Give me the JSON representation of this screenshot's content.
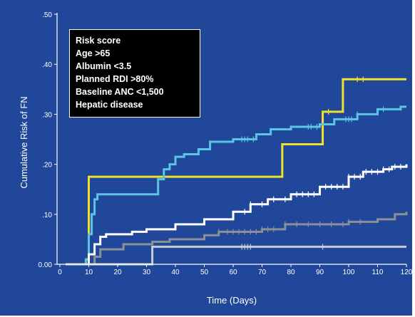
{
  "chart_data": {
    "type": "line",
    "title": "",
    "xlabel": "Time (Days)",
    "ylabel": "Cumulative Risk of FN",
    "xlim": [
      0,
      120
    ],
    "ylim": [
      0,
      0.5
    ],
    "x_ticks": [
      "0",
      "10",
      "20",
      "30",
      "40",
      "50",
      "60",
      "70",
      "80",
      "90",
      "100",
      "110",
      "120"
    ],
    "y_ticks": [
      "0.00",
      ".10",
      ".20",
      ".30",
      ".40",
      ".50"
    ],
    "legend": {
      "header": "Risk score",
      "entries": [
        "Age >65",
        "Albumin <3.5",
        "Planned RDI >80%",
        "Baseline ANC <1,500",
        "Hepatic disease"
      ]
    },
    "series": [
      {
        "color": "#f2e12b",
        "points": [
          [
            2,
            0
          ],
          [
            8,
            0
          ],
          [
            9,
            0.01
          ],
          [
            10,
            0.02
          ],
          [
            10,
            0.175
          ],
          [
            77,
            0.175
          ],
          [
            77,
            0.24
          ],
          [
            91,
            0.24
          ],
          [
            91,
            0.305
          ],
          [
            98,
            0.305
          ],
          [
            98,
            0.37
          ],
          [
            120,
            0.37
          ]
        ],
        "censor_x": [
          93,
          103,
          105
        ]
      },
      {
        "color": "#5cc5e3",
        "points": [
          [
            2,
            0
          ],
          [
            8,
            0
          ],
          [
            9,
            0.01
          ],
          [
            10,
            0.06
          ],
          [
            11,
            0.1
          ],
          [
            12,
            0.13
          ],
          [
            13,
            0.14
          ],
          [
            33,
            0.14
          ],
          [
            34,
            0.17
          ],
          [
            36,
            0.19
          ],
          [
            38,
            0.2
          ],
          [
            40,
            0.215
          ],
          [
            43,
            0.22
          ],
          [
            48,
            0.23
          ],
          [
            52,
            0.245
          ],
          [
            60,
            0.25
          ],
          [
            68,
            0.26
          ],
          [
            73,
            0.27
          ],
          [
            80,
            0.275
          ],
          [
            90,
            0.28
          ],
          [
            95,
            0.29
          ],
          [
            103,
            0.3
          ],
          [
            110,
            0.31
          ],
          [
            118,
            0.315
          ],
          [
            120,
            0.315
          ]
        ],
        "censor_x": [
          63,
          64,
          65,
          67,
          86,
          87,
          89,
          99,
          100,
          101,
          103,
          112
        ]
      },
      {
        "color": "#ffffff",
        "points": [
          [
            2,
            0
          ],
          [
            8,
            0
          ],
          [
            10,
            0.02
          ],
          [
            12,
            0.04
          ],
          [
            14,
            0.055
          ],
          [
            16,
            0.06
          ],
          [
            24,
            0.06
          ],
          [
            25,
            0.065
          ],
          [
            30,
            0.07
          ],
          [
            40,
            0.08
          ],
          [
            50,
            0.09
          ],
          [
            60,
            0.105
          ],
          [
            66,
            0.12
          ],
          [
            72,
            0.13
          ],
          [
            80,
            0.14
          ],
          [
            90,
            0.155
          ],
          [
            100,
            0.175
          ],
          [
            105,
            0.185
          ],
          [
            112,
            0.19
          ],
          [
            115,
            0.195
          ],
          [
            120,
            0.2
          ]
        ],
        "censor_x": [
          64,
          66,
          70,
          74,
          78,
          82,
          84,
          86,
          88,
          92,
          94,
          96,
          98,
          100,
          102,
          104,
          106,
          108,
          110,
          112,
          114,
          116,
          118
        ]
      },
      {
        "color": "#8b8f97",
        "points": [
          [
            2,
            0
          ],
          [
            10,
            0
          ],
          [
            12,
            0.015
          ],
          [
            14,
            0.03
          ],
          [
            22,
            0.04
          ],
          [
            32,
            0.045
          ],
          [
            38,
            0.05
          ],
          [
            50,
            0.058
          ],
          [
            55,
            0.065
          ],
          [
            70,
            0.07
          ],
          [
            78,
            0.08
          ],
          [
            100,
            0.085
          ],
          [
            110,
            0.09
          ],
          [
            116,
            0.1
          ],
          [
            120,
            0.105
          ]
        ],
        "censor_x": [
          55,
          58,
          60,
          62,
          64,
          66,
          68,
          70,
          72,
          74,
          78,
          82,
          86,
          90,
          94,
          98,
          100,
          104
        ]
      },
      {
        "color": "#c8ccd4",
        "points": [
          [
            2,
            0
          ],
          [
            32,
            0
          ],
          [
            32,
            0.035
          ],
          [
            120,
            0.035
          ]
        ],
        "censor_x": [
          63,
          64,
          65,
          66,
          91
        ]
      }
    ]
  }
}
